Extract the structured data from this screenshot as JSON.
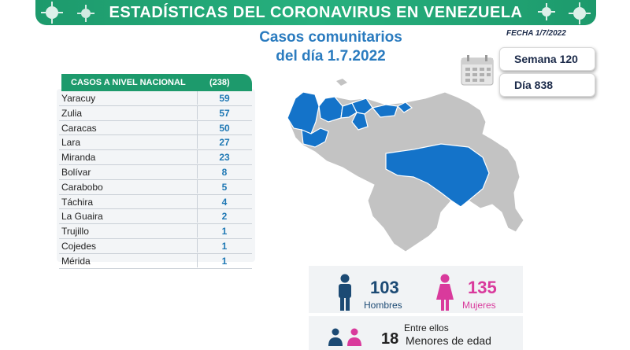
{
  "header": {
    "title": "ESTADÍSTICAS DEL CORONAVIRUS EN VENEZUELA",
    "subtitle_line1": "Casos comunitarios",
    "subtitle_line2": "del día 1.7.2022",
    "fecha": "FECHA 1/7/2022",
    "semana": "Semana 120",
    "dia": "Día 838"
  },
  "table": {
    "header_label": "CASOS A NIVEL NACIONAL",
    "header_total": "(238)",
    "rows": [
      {
        "state": "Yaracuy",
        "cases": "59"
      },
      {
        "state": "Zulia",
        "cases": "57"
      },
      {
        "state": "Caracas",
        "cases": "50"
      },
      {
        "state": "Lara",
        "cases": "27"
      },
      {
        "state": "Miranda",
        "cases": "23"
      },
      {
        "state": "Bolívar",
        "cases": "8"
      },
      {
        "state": "Carabobo",
        "cases": "5"
      },
      {
        "state": "Táchira",
        "cases": "4"
      },
      {
        "state": "La Guaira",
        "cases": "2"
      },
      {
        "state": "Trujillo",
        "cases": "1"
      },
      {
        "state": "Cojedes",
        "cases": "1"
      },
      {
        "state": "Mérida",
        "cases": "1"
      }
    ]
  },
  "gender": {
    "men_count": "103",
    "men_label": "Hombres",
    "women_count": "135",
    "women_label": "Mujeres",
    "minors_prefix": "Entre ellos",
    "minors_count": "18",
    "minors_label": "Menores de edad"
  },
  "colors": {
    "banner": "#1d9a6c",
    "map_highlight": "#1473c9",
    "map_base": "#c3c3c3",
    "men": "#1c4a74",
    "women": "#d93a9c"
  },
  "icons": [
    "virus-icon",
    "calendar-icon",
    "man-icon",
    "woman-icon",
    "family-icon"
  ]
}
